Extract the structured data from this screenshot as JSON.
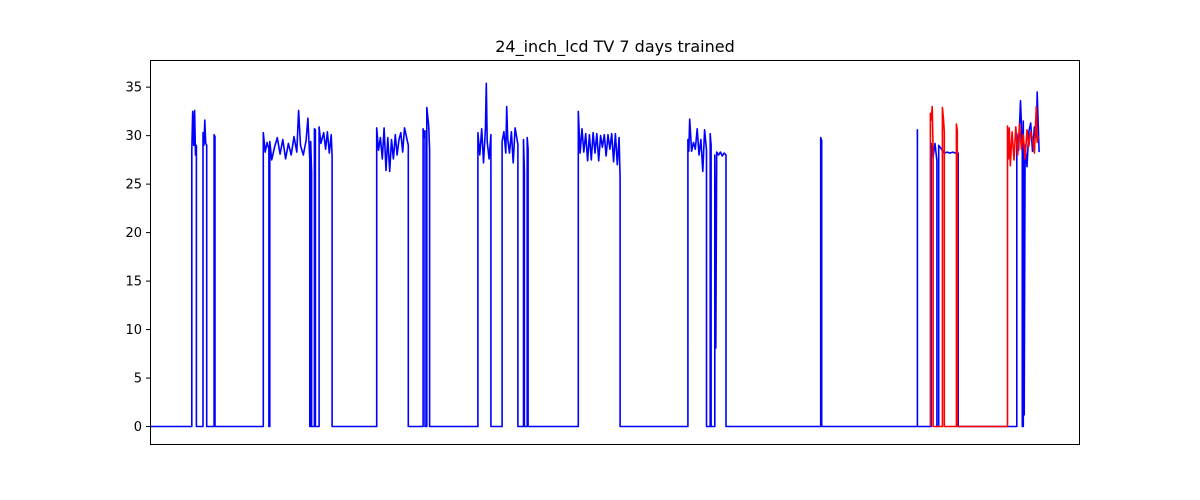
{
  "chart_data": {
    "type": "line",
    "title": "24_inch_lcd TV 7 days trained",
    "xlabel": "",
    "ylabel": "",
    "x_ticks_visible": false,
    "xlim": [
      0,
      1000
    ],
    "ylim": [
      -1.8,
      37.8
    ],
    "y_ticks": [
      0,
      5,
      10,
      15,
      20,
      25,
      30,
      35
    ],
    "grid": false,
    "legend": "none",
    "series": [
      {
        "color": "#0000ff",
        "segments": [
          [
            0,
            0
          ],
          [
            45,
            0
          ],
          [
            45,
            28.5
          ],
          [
            46,
            32.5
          ],
          [
            47,
            29.0
          ],
          [
            48,
            32.6
          ],
          [
            49,
            28.0
          ],
          [
            50,
            29.0
          ],
          [
            50,
            0
          ],
          [
            57,
            0
          ],
          [
            57,
            30.3
          ],
          [
            58,
            29.0
          ],
          [
            59,
            31.6
          ],
          [
            60,
            29.2
          ],
          [
            61,
            29.0
          ],
          [
            61,
            0
          ],
          [
            69,
            0
          ],
          [
            69,
            30.1
          ],
          [
            70,
            29.9
          ],
          [
            70,
            0
          ],
          [
            122,
            0
          ],
          [
            122,
            30.3
          ],
          [
            124,
            28.3
          ],
          [
            126,
            29.3
          ],
          [
            128,
            28.6
          ],
          [
            128,
            0
          ],
          [
            129,
            0
          ],
          [
            129,
            29.4
          ],
          [
            131,
            27.5
          ],
          [
            134,
            28.8
          ],
          [
            137,
            29.8
          ],
          [
            140,
            28.1
          ],
          [
            143,
            29.6
          ],
          [
            146,
            27.6
          ],
          [
            149,
            29.2
          ],
          [
            152,
            28.0
          ],
          [
            155,
            29.9
          ],
          [
            158,
            28.3
          ],
          [
            160,
            32.6
          ],
          [
            162,
            29.0
          ],
          [
            165,
            28.0
          ],
          [
            168,
            29.5
          ],
          [
            170,
            31.8
          ],
          [
            172,
            27.5
          ],
          [
            172,
            0
          ],
          [
            173,
            0
          ],
          [
            173,
            29.4
          ],
          [
            174,
            26.2
          ],
          [
            174,
            0
          ],
          [
            177,
            0
          ],
          [
            177,
            30.7
          ],
          [
            178,
            30.6
          ],
          [
            178,
            0
          ],
          [
            182,
            0
          ],
          [
            182,
            30.9
          ],
          [
            184,
            29.2
          ],
          [
            187,
            30.3
          ],
          [
            189,
            28.6
          ],
          [
            191,
            30.4
          ],
          [
            193,
            28.2
          ],
          [
            195,
            30.1
          ],
          [
            196,
            27.9
          ],
          [
            196,
            0
          ],
          [
            244,
            0
          ],
          [
            244,
            30.8
          ],
          [
            246,
            28.5
          ],
          [
            248,
            29.8
          ],
          [
            250,
            27.6
          ],
          [
            252,
            30.8
          ],
          [
            254,
            26.4
          ],
          [
            256,
            29.8
          ],
          [
            258,
            26.3
          ],
          [
            260,
            29.6
          ],
          [
            262,
            27.6
          ],
          [
            264,
            30.1
          ],
          [
            266,
            28.0
          ],
          [
            268,
            29.6
          ],
          [
            270,
            30.3
          ],
          [
            272,
            28.3
          ],
          [
            274,
            30.8
          ],
          [
            278,
            29.0
          ],
          [
            278,
            0
          ],
          [
            294,
            0
          ],
          [
            294,
            30.7
          ],
          [
            295,
            29.8
          ],
          [
            296,
            30.5
          ],
          [
            296,
            0
          ],
          [
            298,
            0
          ],
          [
            298,
            32.9
          ],
          [
            300,
            31.0
          ],
          [
            301,
            28.6
          ],
          [
            301,
            0
          ],
          [
            353,
            0
          ],
          [
            353,
            30.3
          ],
          [
            355,
            28.0
          ],
          [
            357,
            30.7
          ],
          [
            359,
            27.2
          ],
          [
            361,
            30.6
          ],
          [
            362,
            35.4
          ],
          [
            363,
            29.4
          ],
          [
            365,
            27.6
          ],
          [
            367,
            30.1
          ],
          [
            367,
            0
          ],
          [
            379,
            0
          ],
          [
            379,
            29.4
          ],
          [
            381,
            30.4
          ],
          [
            383,
            28.2
          ],
          [
            384,
            33.0
          ],
          [
            385,
            29.7
          ],
          [
            387,
            28.2
          ],
          [
            389,
            30.4
          ],
          [
            391,
            27.2
          ],
          [
            393,
            30.8
          ],
          [
            396,
            29.1
          ],
          [
            396,
            0
          ],
          [
            402,
            0
          ],
          [
            402,
            29.6
          ],
          [
            403,
            26.2
          ],
          [
            403,
            0
          ],
          [
            406,
            0
          ],
          [
            406,
            29.8
          ],
          [
            407,
            28.6
          ],
          [
            407,
            0
          ],
          [
            461,
            0
          ],
          [
            461,
            32.5
          ],
          [
            463,
            28.2
          ],
          [
            465,
            30.7
          ],
          [
            467,
            28.3
          ],
          [
            469,
            30.2
          ],
          [
            471,
            27.4
          ],
          [
            473,
            30.1
          ],
          [
            475,
            27.5
          ],
          [
            477,
            30.3
          ],
          [
            479,
            28.2
          ],
          [
            481,
            30.2
          ],
          [
            483,
            27.4
          ],
          [
            485,
            30.0
          ],
          [
            487,
            28.8
          ],
          [
            489,
            30.1
          ],
          [
            491,
            27.9
          ],
          [
            493,
            30.1
          ],
          [
            495,
            28.6
          ],
          [
            497,
            30.2
          ],
          [
            499,
            27.3
          ],
          [
            501,
            30.2
          ],
          [
            503,
            27.0
          ],
          [
            505,
            29.8
          ],
          [
            506,
            25.6
          ],
          [
            506,
            0
          ],
          [
            579,
            0
          ],
          [
            579,
            29.6
          ],
          [
            580,
            28.4
          ],
          [
            581,
            31.7
          ],
          [
            583,
            28.4
          ],
          [
            585,
            29.3
          ],
          [
            587,
            28.6
          ],
          [
            589,
            30.7
          ],
          [
            591,
            28.0
          ],
          [
            593,
            29.6
          ],
          [
            595,
            26.3
          ],
          [
            597,
            30.6
          ],
          [
            599,
            28.5
          ],
          [
            599,
            0
          ],
          [
            603,
            0
          ],
          [
            603,
            30.2
          ],
          [
            604,
            29.0
          ],
          [
            604,
            0
          ],
          [
            608,
            0
          ],
          [
            608,
            28.0
          ],
          [
            609,
            8.1
          ],
          [
            610,
            28.3
          ],
          [
            612,
            28.0
          ],
          [
            614,
            28.3
          ],
          [
            616,
            27.9
          ],
          [
            618,
            28.2
          ],
          [
            620,
            28.0
          ],
          [
            620,
            0
          ],
          [
            722,
            0
          ],
          [
            722,
            29.8
          ],
          [
            723,
            29.5
          ],
          [
            723,
            0
          ],
          [
            826,
            0
          ],
          [
            826,
            30.6
          ],
          [
            826,
            0
          ],
          [
            841,
            0
          ],
          [
            841,
            29.2
          ],
          [
            843,
            27.8
          ],
          [
            845,
            29.2
          ],
          [
            847,
            27.4
          ],
          [
            847,
            0
          ],
          [
            849,
            0
          ],
          [
            849,
            29.0
          ],
          [
            852,
            28.6
          ],
          [
            855,
            28.2
          ],
          [
            858,
            28.3
          ],
          [
            861,
            28.2
          ],
          [
            864,
            28.3
          ],
          [
            867,
            28.2
          ],
          [
            870,
            28.2
          ],
          [
            870,
            0
          ],
          [
            933,
            0
          ],
          [
            933,
            30.2
          ],
          [
            935,
            28.5
          ],
          [
            937,
            33.6
          ],
          [
            939,
            28.8
          ],
          [
            939,
            0
          ],
          [
            940,
            0
          ],
          [
            940,
            31.5
          ],
          [
            941,
            1.2
          ],
          [
            942,
            29.0
          ],
          [
            944,
            26.8
          ],
          [
            946,
            30.4
          ],
          [
            948,
            31.3
          ],
          [
            950,
            28.4
          ],
          [
            952,
            30.9
          ],
          [
            954,
            29.8
          ],
          [
            955,
            34.5
          ],
          [
            957,
            28.3
          ]
        ]
      },
      {
        "color": "#ff0000",
        "segments": [
          [
            840,
            0
          ],
          [
            840,
            32.3
          ],
          [
            841,
            31.6
          ],
          [
            842,
            33.0
          ],
          [
            843,
            28.5
          ],
          [
            843,
            0
          ],
          [
            853,
            0
          ],
          [
            853,
            32.9
          ],
          [
            854,
            31.8
          ],
          [
            855,
            30.4
          ],
          [
            855,
            0
          ],
          [
            868,
            0
          ],
          [
            868,
            31.2
          ],
          [
            869,
            30.5
          ],
          [
            869,
            0
          ],
          [
            923,
            0
          ],
          [
            923,
            31.0
          ],
          [
            924,
            27.6
          ],
          [
            925,
            30.8
          ],
          [
            926,
            26.9
          ],
          [
            928,
            30.4
          ],
          [
            930,
            27.5
          ],
          [
            932,
            30.9
          ],
          [
            934,
            28.0
          ],
          [
            936,
            31.2
          ],
          [
            938,
            28.6
          ],
          [
            940,
            30.1
          ],
          [
            942,
            27.6
          ],
          [
            944,
            30.6
          ],
          [
            946,
            28.9
          ],
          [
            948,
            30.4
          ],
          [
            950,
            29.7
          ],
          [
            952,
            28.2
          ],
          [
            954,
            33.0
          ],
          [
            955,
            29.3
          ],
          [
            956,
            30.0
          ]
        ]
      }
    ]
  }
}
